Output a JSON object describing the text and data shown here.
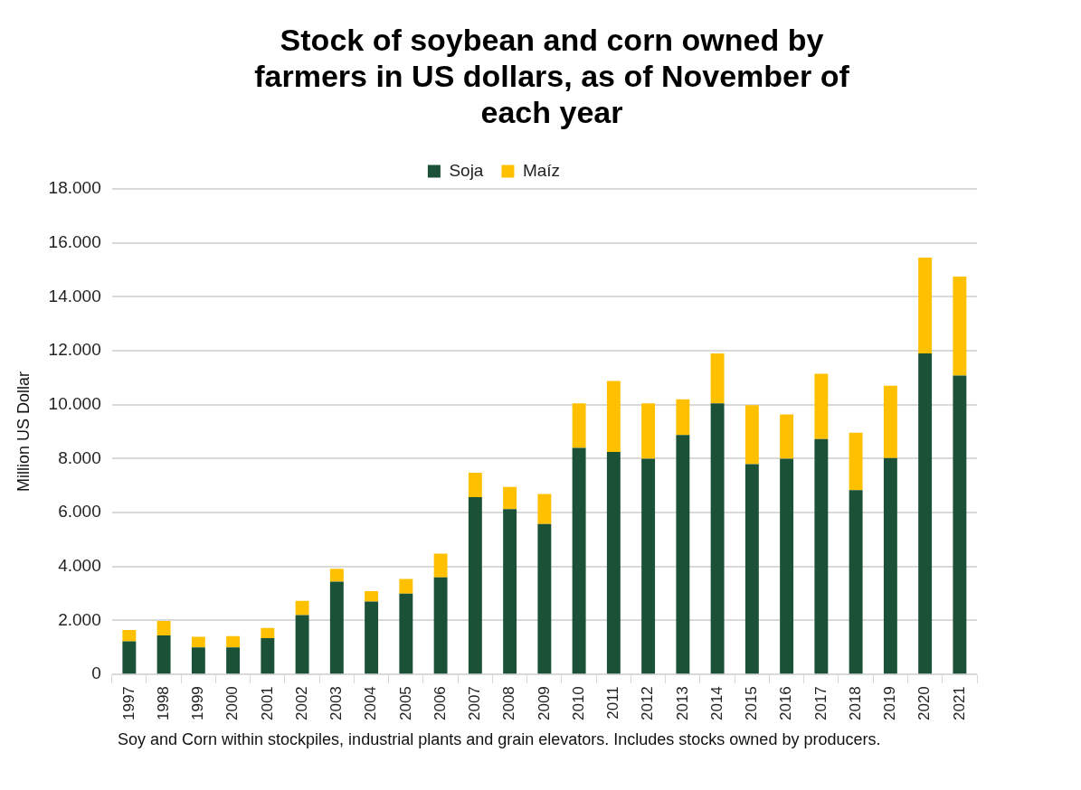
{
  "chart_data": {
    "type": "bar",
    "title": "Stock of soybean and corn owned by farmers in US dollars, as of November of each year",
    "ylabel": "Million US Dollar",
    "categories": [
      "1997",
      "1998",
      "1999",
      "2000",
      "2001",
      "2002",
      "2003",
      "2004",
      "2005",
      "2006",
      "2007",
      "2008",
      "2009",
      "2010",
      "2011",
      "2012",
      "2013",
      "2014",
      "2015",
      "2016",
      "2017",
      "2018",
      "2019",
      "2020",
      "2021"
    ],
    "series": [
      {
        "name": "Soja",
        "color": "#1b5136",
        "values": [
          1230,
          1450,
          1000,
          1000,
          1350,
          2200,
          3440,
          2700,
          3000,
          3600,
          6570,
          6130,
          5580,
          8400,
          8250,
          8000,
          8880,
          10050,
          7800,
          8000,
          8730,
          6830,
          8020,
          11900,
          11080
        ]
      },
      {
        "name": "Maíz",
        "color": "#ffc000",
        "values": [
          420,
          530,
          400,
          420,
          370,
          530,
          480,
          390,
          540,
          880,
          910,
          820,
          1110,
          1650,
          2630,
          2050,
          1320,
          1850,
          2180,
          1640,
          2420,
          2130,
          2680,
          3550,
          3670
        ]
      }
    ],
    "stacked": true,
    "ylim": [
      0,
      18000
    ],
    "yticks": [
      {
        "value": 0,
        "label": "0"
      },
      {
        "value": 2000,
        "label": "2.000"
      },
      {
        "value": 4000,
        "label": "4.000"
      },
      {
        "value": 6000,
        "label": "6.000"
      },
      {
        "value": 8000,
        "label": "8.000"
      },
      {
        "value": 10000,
        "label": "10.000"
      },
      {
        "value": 12000,
        "label": "12.000"
      },
      {
        "value": 14000,
        "label": "14.000"
      },
      {
        "value": 16000,
        "label": "16.000"
      },
      {
        "value": 18000,
        "label": "18.000"
      }
    ],
    "grid": "y",
    "legend": "top",
    "annotations": [
      "Soy and Corn within stockpiles, industrial plants and grain elevators. Includes stocks owned by producers."
    ]
  }
}
